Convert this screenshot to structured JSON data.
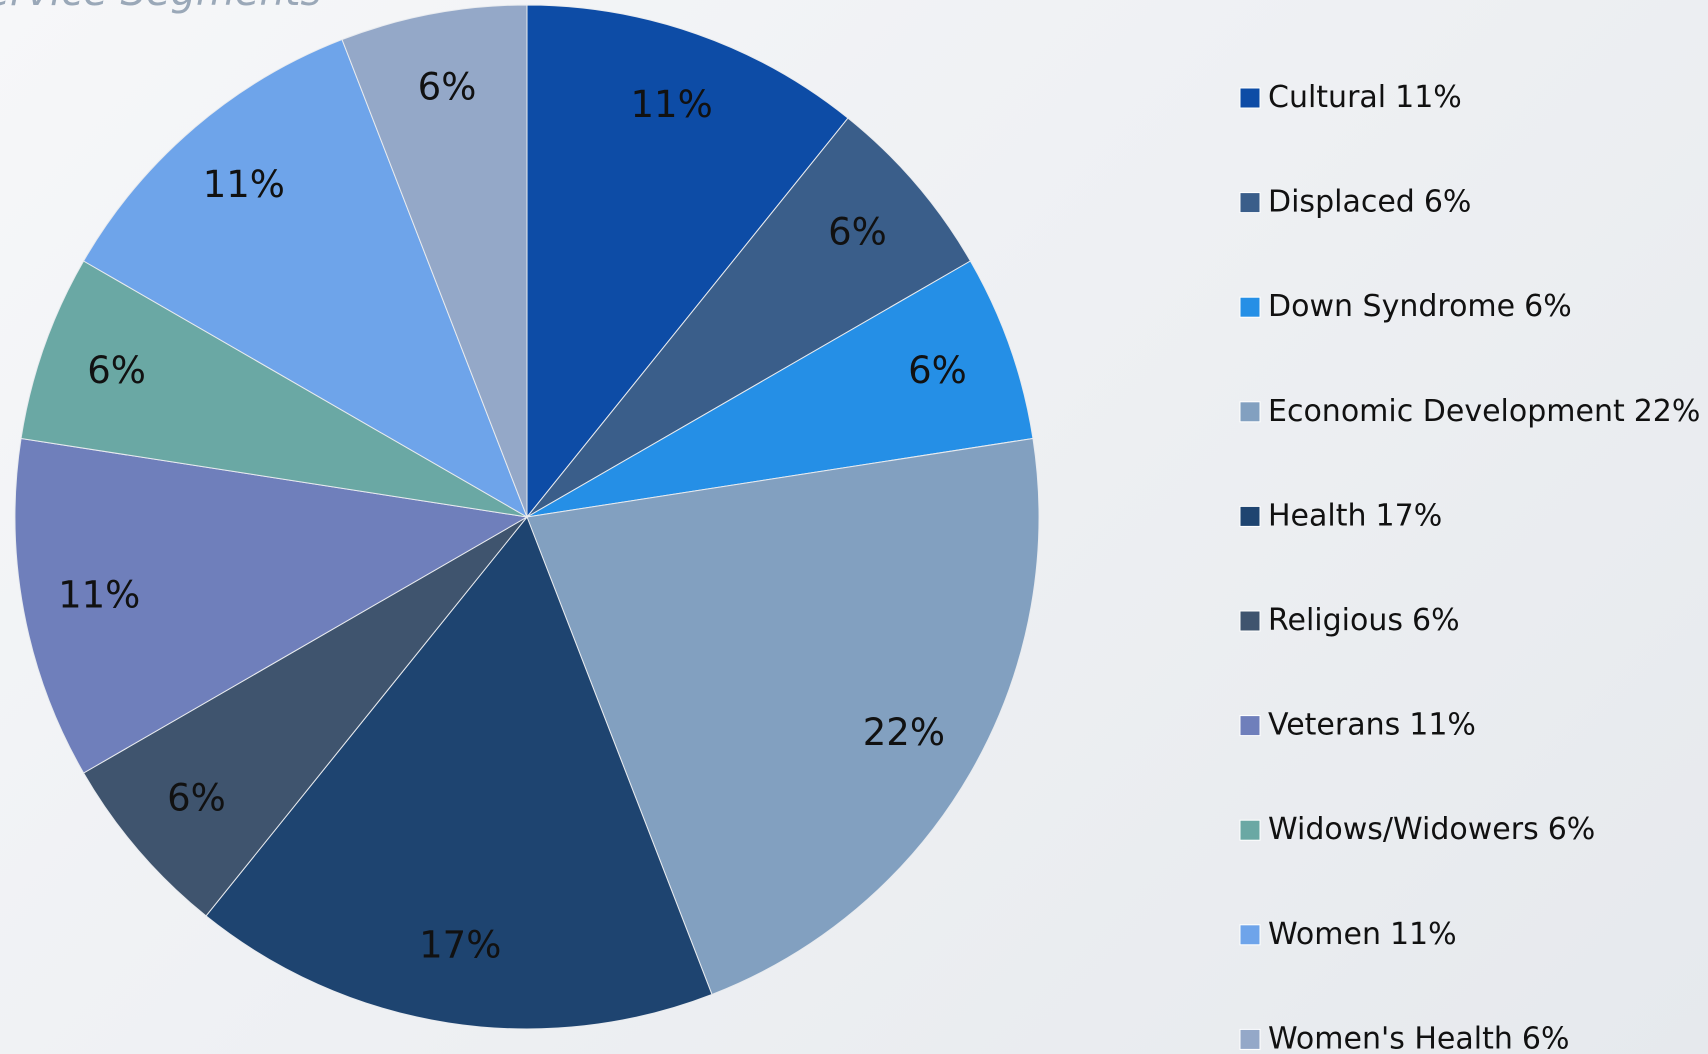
{
  "chart_data": {
    "type": "pie",
    "title": "Service Segments",
    "categories": [
      "Cultural",
      "Displaced",
      "Down Syndrome",
      "Economic Development",
      "Health",
      "Religious",
      "Veterans",
      "Widows/Widowers",
      "Women",
      "Women's Health"
    ],
    "values": [
      11,
      6,
      6,
      22,
      17,
      6,
      11,
      6,
      11,
      6
    ],
    "value_labels": [
      "11%",
      "6%",
      "6%",
      "22%",
      "17%",
      "6%",
      "11%",
      "6%",
      "11%",
      "6%"
    ],
    "colors": [
      "#0d4ca6",
      "#3a5e8a",
      "#258fe6",
      "#82a0c0",
      "#1e4470",
      "#3f546e",
      "#6f7fbb",
      "#6aa8a4",
      "#6ea4ea",
      "#94a8c8"
    ],
    "legend": "right"
  }
}
